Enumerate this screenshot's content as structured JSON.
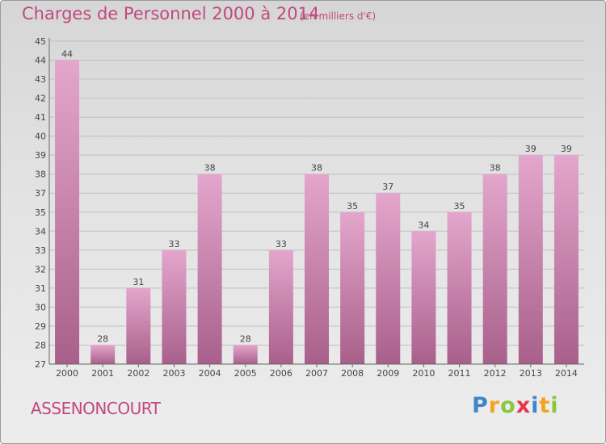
{
  "title": "Charges de Personnel 2000 à 2014",
  "subtitle": "(en milliers d'€)",
  "place_name": "ASSENONCOURT",
  "logo": {
    "text": "Proxiti",
    "letters": [
      {
        "char": "P",
        "color": "#3f86c9"
      },
      {
        "char": "r",
        "color": "#f2a51c"
      },
      {
        "char": "o",
        "color": "#8cc63f"
      },
      {
        "char": "x",
        "color": "#e8344e"
      },
      {
        "char": "i",
        "color": "#3f86c9"
      },
      {
        "char": "t",
        "color": "#f2a51c"
      },
      {
        "char": "i",
        "color": "#8cc63f"
      }
    ]
  },
  "colors": {
    "bar_top": "#e4a6cc",
    "bar_bottom": "#a8608a",
    "text_accent": "#c2487e",
    "grid": "#bfbfbf"
  },
  "chart_data": {
    "type": "bar",
    "categories": [
      "2000",
      "2001",
      "2002",
      "2003",
      "2004",
      "2005",
      "2006",
      "2007",
      "2008",
      "2009",
      "2010",
      "2011",
      "2012",
      "2013",
      "2014"
    ],
    "values": [
      44,
      28,
      31,
      33,
      38,
      28,
      33,
      38,
      35,
      37,
      34,
      35,
      38,
      39,
      39
    ],
    "y_ticks": [
      "45",
      "44",
      "43",
      "42",
      "41",
      "40",
      "39",
      "38",
      "37",
      "35",
      "34",
      "33",
      "32",
      "31",
      "30",
      "29",
      "28",
      "27"
    ],
    "xlabel": "",
    "ylabel": "",
    "grid": true
  }
}
